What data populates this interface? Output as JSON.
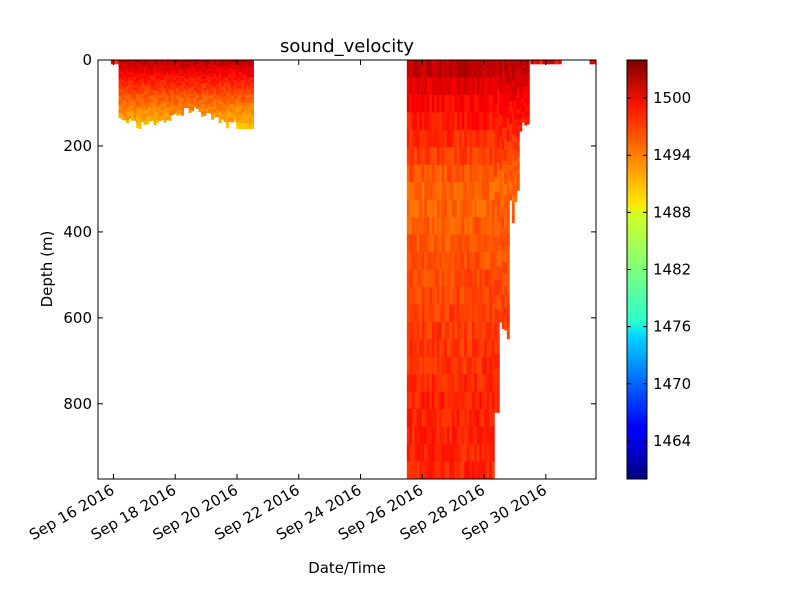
{
  "chart_data": {
    "type": "heatmap",
    "title": "sound_velocity",
    "xlabel": "Date/Time",
    "ylabel": "Depth (m)",
    "x_ticks": [
      "Sep 16 2016",
      "Sep 18 2016",
      "Sep 20 2016",
      "Sep 22 2016",
      "Sep 24 2016",
      "Sep 26 2016",
      "Sep 28 2016",
      "Sep 30 2016"
    ],
    "y_ticks": [
      0,
      200,
      400,
      600,
      800
    ],
    "ylim": [
      0,
      975
    ],
    "y_inverted": true,
    "xlim": [
      "2016-09-15T12:00",
      "2016-10-01T15:00"
    ],
    "colorbar": {
      "colormap": "jet",
      "range": [
        1460,
        1504
      ],
      "ticks": [
        1464,
        1470,
        1476,
        1482,
        1488,
        1494,
        1500
      ]
    },
    "deployments": [
      {
        "name": "",
        "start": "2016-09-15T22:00",
        "end": "2016-09-16T04:00",
        "depth_range_m": [
          0,
          10
        ],
        "sound_velocity_range": [
          1495,
          1502
        ]
      },
      {
        "name": "",
        "start": "2016-09-16T04:00",
        "end": "2016-09-20T12:00",
        "depth_range_m": [
          0,
          160
        ],
        "sound_velocity_surface": 1502,
        "sound_velocity_bottom": 1490
      },
      {
        "name": "",
        "start": "2016-09-25T12:00",
        "end": "2016-09-29T12:00",
        "depth_range_m": [
          0,
          975
        ],
        "sound_velocity_surface": 1502,
        "sound_velocity_mid": 1494,
        "sound_velocity_deep": 1497
      },
      {
        "name": "",
        "start": "2016-09-29T12:00",
        "end": "2016-09-30T12:00",
        "depth_range_m": [
          0,
          10
        ],
        "sound_velocity_range": [
          1496,
          1502
        ]
      },
      {
        "name": "",
        "start": "2016-10-01T10:00",
        "end": "2016-10-01T15:00",
        "depth_range_m": [
          0,
          10
        ],
        "sound_velocity_range": [
          1498,
          1502
        ]
      }
    ]
  }
}
